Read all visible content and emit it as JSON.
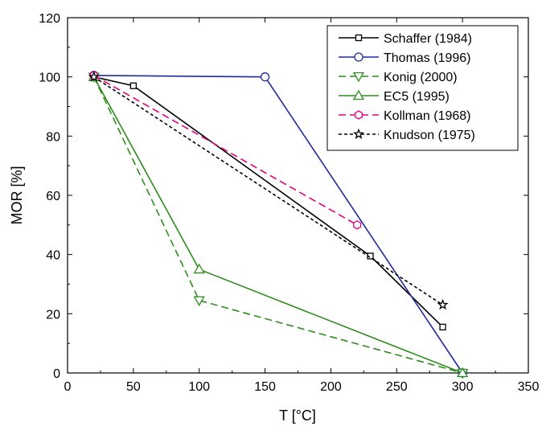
{
  "chart_data": {
    "type": "line",
    "xlabel": "T [°C]",
    "ylabel": "MOR [%]",
    "xlim": [
      0,
      350
    ],
    "ylim": [
      0,
      120
    ],
    "xticks": [
      0,
      50,
      100,
      150,
      200,
      250,
      300,
      350
    ],
    "yticks": [
      0,
      20,
      40,
      60,
      80,
      100,
      120
    ],
    "grid": false,
    "legend_position": "top-right",
    "series": [
      {
        "name": "Schaffer (1984)",
        "color": "#000000",
        "dash": "solid",
        "marker": "square",
        "x": [
          20,
          50,
          230,
          285
        ],
        "y": [
          100,
          97,
          39.5,
          15.5
        ]
      },
      {
        "name": "Thomas (1996)",
        "color": "#1f2a9e",
        "dash": "solid",
        "marker": "circle",
        "x": [
          20,
          150,
          300
        ],
        "y": [
          100.5,
          100,
          0
        ]
      },
      {
        "name": "Konig (2000)",
        "color": "#2e8b1e",
        "dash": "dashed",
        "marker": "triangle-down",
        "x": [
          20,
          100,
          300
        ],
        "y": [
          100,
          24.5,
          0
        ]
      },
      {
        "name": "EC5 (1995)",
        "color": "#2e8b1e",
        "dash": "solid",
        "marker": "triangle-up",
        "x": [
          20,
          100,
          300
        ],
        "y": [
          100,
          35,
          0
        ]
      },
      {
        "name": "Kollman (1968)",
        "color": "#e6007e",
        "dash": "dashed",
        "marker": "hexagon",
        "x": [
          20,
          220
        ],
        "y": [
          100.5,
          50
        ]
      },
      {
        "name": "Knudson (1975)",
        "color": "#000000",
        "dash": "dotted",
        "marker": "star",
        "x": [
          20,
          285
        ],
        "y": [
          100,
          23
        ]
      }
    ]
  }
}
